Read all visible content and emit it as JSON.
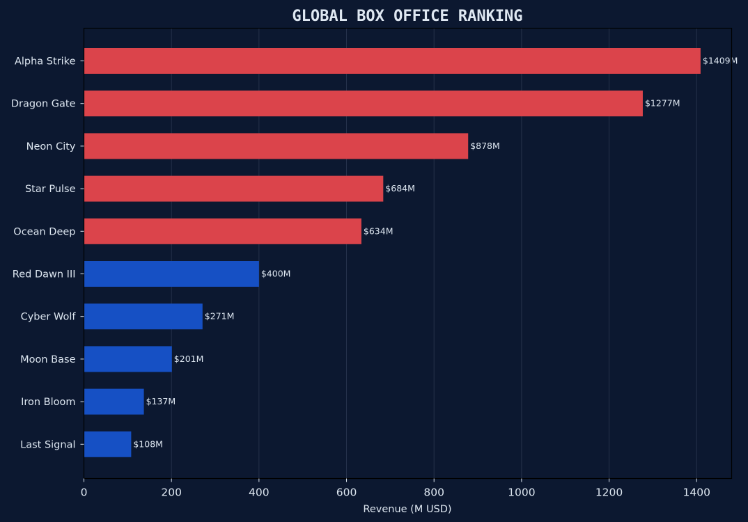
{
  "chart_data": {
    "type": "bar",
    "orientation": "horizontal",
    "title": "GLOBAL BOX OFFICE RANKING",
    "xlabel": "Revenue (M USD)",
    "ylabel": "",
    "xlim": [
      0,
      1480
    ],
    "xticks": [
      0,
      200,
      400,
      600,
      800,
      1000,
      1200,
      1400
    ],
    "grid": "vertical",
    "value_label_prefix": "$",
    "value_label_suffix": "M",
    "categories": [
      "Alpha Strike",
      "Dragon Gate",
      "Neon City",
      "Star Pulse",
      "Ocean Deep",
      "Red Dawn III",
      "Cyber Wolf",
      "Moon Base",
      "Iron Bloom",
      "Last Signal"
    ],
    "values": [
      1409,
      1277,
      878,
      684,
      634,
      400,
      271,
      201,
      137,
      108
    ],
    "value_labels": [
      "$1409M",
      "$1277M",
      "$878M",
      "$684M",
      "$634M",
      "$400M",
      "$271M",
      "$201M",
      "$137M",
      "$108M"
    ],
    "groups": [
      "top",
      "top",
      "top",
      "top",
      "top",
      "rest",
      "rest",
      "rest",
      "rest",
      "rest"
    ],
    "colors": {
      "top": "#db444b",
      "rest": "#1650c4",
      "background": "#0c1830",
      "text": "#dde6f0",
      "title": "#dfe8f2",
      "grid": "#3a4660",
      "axis": "#000000"
    }
  }
}
